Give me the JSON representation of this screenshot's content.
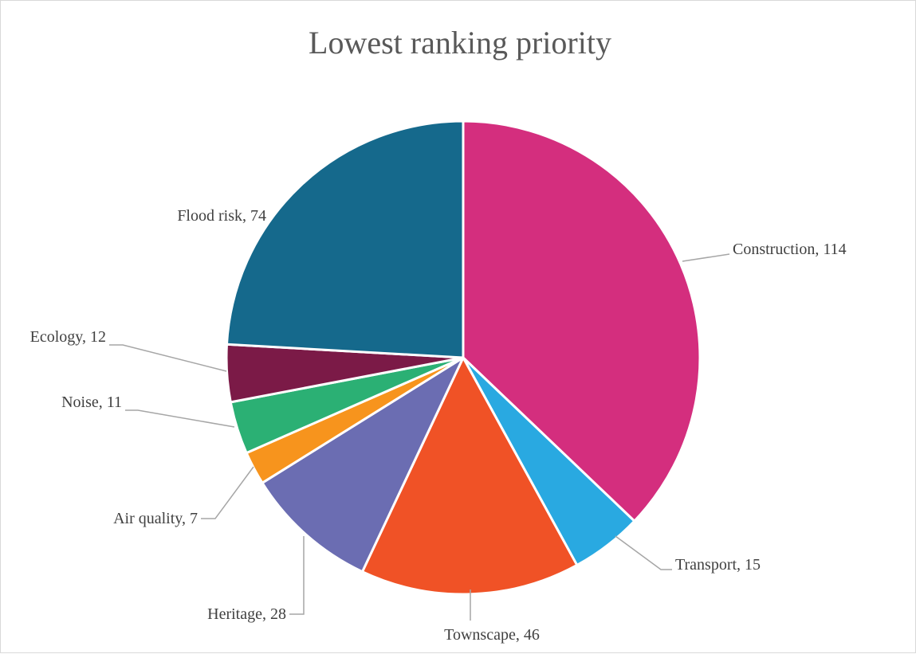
{
  "chart_data": {
    "type": "pie",
    "title": "Lowest ranking priority",
    "slices": [
      {
        "label": "Construction",
        "value": 114,
        "color": "#d42e7e"
      },
      {
        "label": "Transport",
        "value": 15,
        "color": "#29a9e1"
      },
      {
        "label": "Townscape",
        "value": 46,
        "color": "#f05226"
      },
      {
        "label": "Heritage",
        "value": 28,
        "color": "#6b6db2"
      },
      {
        "label": "Air quality",
        "value": 7,
        "color": "#f7941d"
      },
      {
        "label": "Noise",
        "value": 11,
        "color": "#2bb074"
      },
      {
        "label": "Ecology",
        "value": 12,
        "color": "#7b1a47"
      },
      {
        "label": "Flood risk",
        "value": 74,
        "color": "#15698c"
      }
    ],
    "start_angle": "12 o'clock",
    "direction": "clockwise",
    "legend": "none",
    "data_labels": "category name and value, outside end with leader lines"
  }
}
